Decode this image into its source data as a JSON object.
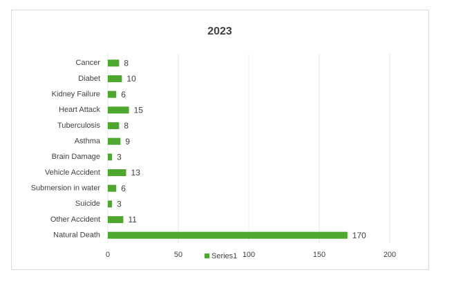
{
  "chart_data": {
    "type": "bar",
    "orientation": "horizontal",
    "title": "2023",
    "categories": [
      "Cancer",
      "Diabet",
      "Kidney Failure",
      "Heart Attack",
      "Tuberculosis",
      "Asthma",
      "Brain Damage",
      "Vehicle Accident",
      "Submersion in water",
      "Suicide",
      "Other Accident",
      "Natural Death"
    ],
    "series": [
      {
        "name": "Series1",
        "color": "#4ea72e",
        "values": [
          8,
          10,
          6,
          15,
          8,
          9,
          3,
          13,
          6,
          3,
          11,
          170
        ]
      }
    ],
    "xlim": [
      0,
      200
    ],
    "xticks": [
      0,
      50,
      100,
      150,
      200
    ],
    "grid": true,
    "legend": "bottom",
    "data_labels": true
  }
}
